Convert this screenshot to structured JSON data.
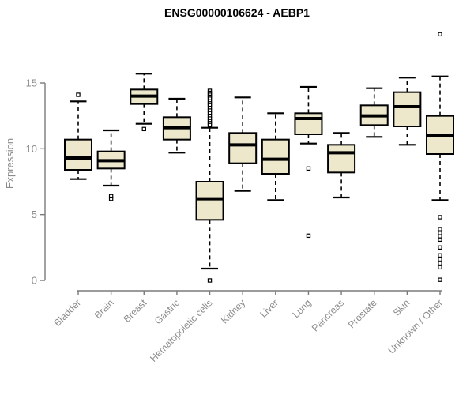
{
  "chart_data": {
    "type": "boxplot",
    "title": "ENSG00000106624 - AEBP1",
    "ylabel": "Expression",
    "xlabel": "",
    "ylim": [
      0,
      15
    ],
    "yticks": [
      0,
      5,
      10,
      15
    ],
    "grid": false,
    "legend": "none",
    "x_label_rotation": 45,
    "colors": {
      "box_fill": "#EDE8CC",
      "box_border": "#000000",
      "median": "#000000",
      "whisker": "#000000",
      "outlier": "#000000",
      "axis_line": "#7a7a7a",
      "axis_text": "#8c8c8c",
      "title": "#000000",
      "background": "#ffffff"
    },
    "boxes": [
      {
        "label": "Bladder",
        "whisker_low": 7.7,
        "q1": 8.4,
        "median": 9.3,
        "q3": 10.7,
        "whisker_high": 13.6,
        "outliers": [
          14.1
        ]
      },
      {
        "label": "Brain",
        "whisker_low": 7.2,
        "q1": 8.5,
        "median": 9.1,
        "q3": 9.8,
        "whisker_high": 11.4,
        "outliers": [
          6.4,
          6.2
        ]
      },
      {
        "label": "Breast",
        "whisker_low": 11.9,
        "q1": 13.4,
        "median": 14.0,
        "q3": 14.5,
        "whisker_high": 15.7,
        "outliers": [
          11.5
        ]
      },
      {
        "label": "Gastric",
        "whisker_low": 9.7,
        "q1": 10.7,
        "median": 11.6,
        "q3": 12.4,
        "whisker_high": 13.8,
        "outliers": []
      },
      {
        "label": "Hematopoietic cells",
        "whisker_low": 0.9,
        "q1": 4.6,
        "median": 6.2,
        "q3": 7.5,
        "whisker_high": 11.6,
        "outliers": [
          14.4,
          14.25,
          14.1,
          13.95,
          13.8,
          13.6,
          13.45,
          13.3,
          13.1,
          12.9,
          12.7,
          12.5,
          12.3,
          12.1,
          11.95,
          11.8,
          0.0
        ]
      },
      {
        "label": "Kidney",
        "whisker_low": 6.8,
        "q1": 8.9,
        "median": 10.3,
        "q3": 11.2,
        "whisker_high": 13.9,
        "outliers": []
      },
      {
        "label": "Liver",
        "whisker_low": 6.1,
        "q1": 8.1,
        "median": 9.2,
        "q3": 10.7,
        "whisker_high": 12.7,
        "outliers": []
      },
      {
        "label": "Lung",
        "whisker_low": 10.4,
        "q1": 11.1,
        "median": 12.3,
        "q3": 12.7,
        "whisker_high": 14.7,
        "outliers": [
          8.5,
          3.4
        ]
      },
      {
        "label": "Pancreas",
        "whisker_low": 6.3,
        "q1": 8.2,
        "median": 9.7,
        "q3": 10.3,
        "whisker_high": 11.2,
        "outliers": []
      },
      {
        "label": "Prostate",
        "whisker_low": 10.9,
        "q1": 11.8,
        "median": 12.5,
        "q3": 13.3,
        "whisker_high": 14.6,
        "outliers": []
      },
      {
        "label": "Skin",
        "whisker_low": 10.3,
        "q1": 11.7,
        "median": 13.2,
        "q3": 14.3,
        "whisker_high": 15.4,
        "outliers": []
      },
      {
        "label": "Unknown / Other",
        "whisker_low": 6.1,
        "q1": 9.6,
        "median": 11.0,
        "q3": 12.5,
        "whisker_high": 15.5,
        "outliers": [
          18.7,
          4.8,
          3.9,
          3.6,
          3.35,
          3.1,
          2.5,
          1.9,
          1.6,
          1.3,
          1.0,
          0.05
        ]
      }
    ]
  }
}
